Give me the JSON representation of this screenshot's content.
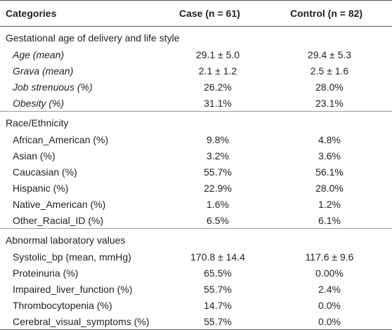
{
  "table": {
    "header": [
      "Categories",
      "Case (n = 61)",
      "Control (n = 82)"
    ],
    "sections": [
      {
        "title": "Gestational age of delivery and life style",
        "italic_labels": true,
        "rows": [
          [
            "Age (mean)",
            "29.1 ± 5.0",
            "29.4 ± 5.3"
          ],
          [
            "Grava (mean)",
            "2.1 ± 1.2",
            "2.5 ± 1.6"
          ],
          [
            "Job strenuous (%)",
            "26.2%",
            "28.0%"
          ],
          [
            "Obesity (%)",
            "31.1%",
            "23.1%"
          ]
        ]
      },
      {
        "title": "Race/Ethnicity",
        "italic_labels": false,
        "rows": [
          [
            "African_American (%)",
            "9.8%",
            "4.8%"
          ],
          [
            "Asian (%)",
            "3.2%",
            "3.6%"
          ],
          [
            "Caucasian (%)",
            "55.7%",
            "56.1%"
          ],
          [
            "Hispanic (%)",
            "22.9%",
            "28.0%"
          ],
          [
            "Native_American (%)",
            "1.6%",
            "1.2%"
          ],
          [
            "Other_Racial_ID (%)",
            "6.5%",
            "6.1%"
          ]
        ]
      },
      {
        "title": "Abnormal laboratory values",
        "italic_labels": false,
        "rows": [
          [
            "Systolic_bp (mean, mmHg)",
            "170.8 ± 14.4",
            "117.6 ± 9.6"
          ],
          [
            "Proteinuria (%)",
            "65.5%",
            "0.00%"
          ],
          [
            "Impaired_liver_function (%)",
            "55.7%",
            "2.4%"
          ],
          [
            "Thrombocytopenia (%)",
            "14.7%",
            "0.0%"
          ],
          [
            "Cerebral_visual_symptoms (%)",
            "55.7%",
            "0.0%"
          ]
        ]
      }
    ]
  }
}
